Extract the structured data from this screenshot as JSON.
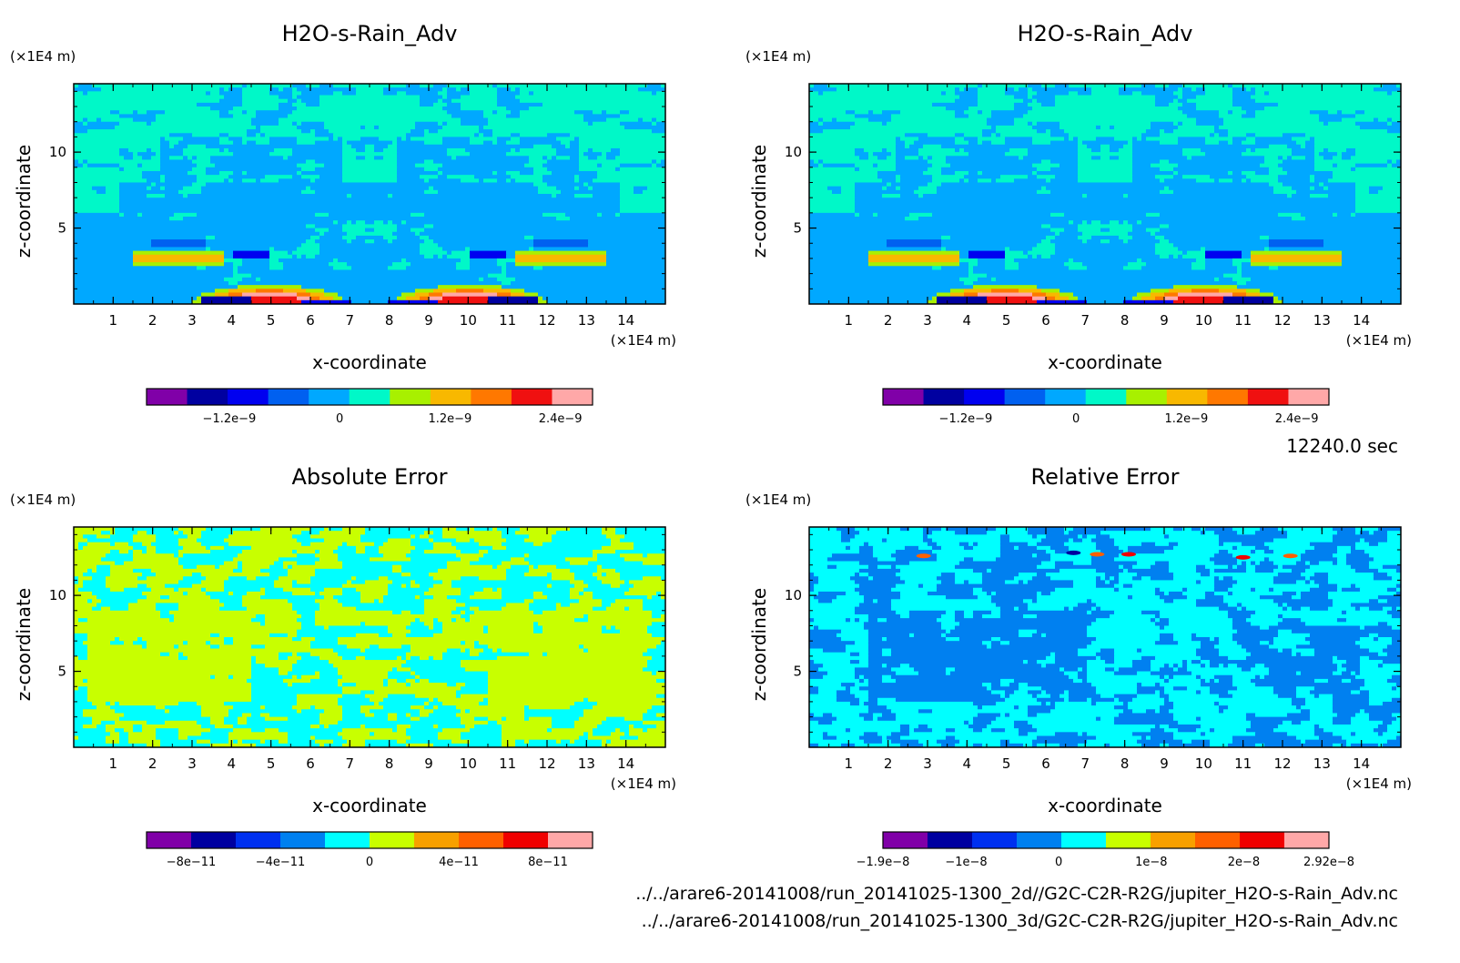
{
  "figure": {
    "time_label": "12240.0 sec",
    "file_lines": [
      "../../arare6-20141008/run_20141025-1300_2d//G2C-C2R-R2G/jupiter_H2O-s-Rain_Adv.nc",
      "../../arare6-20141008/run_20141025-1300_3d/G2C-C2R-R2G/jupiter_H2O-s-Rain_Adv.nc"
    ],
    "colors": {
      "palette": [
        "#8000a8",
        "#0000a0",
        "#0000f0",
        "#0060f0",
        "#00a8ff",
        "#00f8c8",
        "#a8f000",
        "#f8b800",
        "#ff7800",
        "#f01010",
        "#ffa8a8"
      ],
      "error_palette": [
        "#8000a8",
        "#0000a0",
        "#0030f0",
        "#0080f0",
        "#00ffff",
        "#c8ff00",
        "#f8a000",
        "#ff6000",
        "#f00000",
        "#ffa8a8"
      ]
    }
  },
  "chart_data": [
    {
      "type": "heatmap",
      "title": "H2O-s-Rain_Adv",
      "xlabel": "x-coordinate",
      "ylabel": "z-coordinate",
      "x_unit": "(×1E4 m)",
      "y_unit": "(×1E4 m)",
      "xlim": [
        0,
        15
      ],
      "ylim": [
        0,
        14.5
      ],
      "x_ticks": [
        1,
        2,
        3,
        4,
        5,
        6,
        7,
        8,
        9,
        10,
        11,
        12,
        13,
        14
      ],
      "y_ticks": [
        5,
        10
      ],
      "colorbar_ticks": [
        {
          "value": -1.2e-09,
          "label": "−1.2e−9"
        },
        {
          "value": 0,
          "label": "0"
        },
        {
          "value": 1.2e-09,
          "label": "1.2e−9"
        },
        {
          "value": 2.4e-09,
          "label": "2.4e−9"
        }
      ],
      "colorbar_range": [
        -2.1e-09,
        2.75e-09
      ]
    },
    {
      "type": "heatmap",
      "title": "H2O-s-Rain_Adv",
      "xlabel": "x-coordinate",
      "ylabel": "z-coordinate",
      "x_unit": "(×1E4 m)",
      "y_unit": "(×1E4 m)",
      "xlim": [
        0,
        15
      ],
      "ylim": [
        0,
        14.5
      ],
      "x_ticks": [
        1,
        2,
        3,
        4,
        5,
        6,
        7,
        8,
        9,
        10,
        11,
        12,
        13,
        14
      ],
      "y_ticks": [
        5,
        10
      ],
      "colorbar_ticks": [
        {
          "value": -1.2e-09,
          "label": "−1.2e−9"
        },
        {
          "value": 0,
          "label": "0"
        },
        {
          "value": 1.2e-09,
          "label": "1.2e−9"
        },
        {
          "value": 2.4e-09,
          "label": "2.4e−9"
        }
      ],
      "colorbar_range": [
        -2.1e-09,
        2.75e-09
      ]
    },
    {
      "type": "heatmap",
      "title": "Absolute Error",
      "xlabel": "x-coordinate",
      "ylabel": "z-coordinate",
      "x_unit": "(×1E4 m)",
      "y_unit": "(×1E4 m)",
      "xlim": [
        0,
        15
      ],
      "ylim": [
        0,
        14.5
      ],
      "x_ticks": [
        1,
        2,
        3,
        4,
        5,
        6,
        7,
        8,
        9,
        10,
        11,
        12,
        13,
        14
      ],
      "y_ticks": [
        5,
        10
      ],
      "colorbar_ticks": [
        {
          "value": -8e-11,
          "label": "−8e−11"
        },
        {
          "value": -4e-11,
          "label": "−4e−11"
        },
        {
          "value": 0,
          "label": "0"
        },
        {
          "value": 4e-11,
          "label": "4e−11"
        },
        {
          "value": 8e-11,
          "label": "8e−11"
        }
      ],
      "colorbar_range": [
        -1e-10,
        1e-10
      ]
    },
    {
      "type": "heatmap",
      "title": "Relative Error",
      "xlabel": "x-coordinate",
      "ylabel": "z-coordinate",
      "x_unit": "(×1E4 m)",
      "y_unit": "(×1E4 m)",
      "xlim": [
        0,
        15
      ],
      "ylim": [
        0,
        14.5
      ],
      "x_ticks": [
        1,
        2,
        3,
        4,
        5,
        6,
        7,
        8,
        9,
        10,
        11,
        12,
        13,
        14
      ],
      "y_ticks": [
        5,
        10
      ],
      "colorbar_ticks": [
        {
          "value": -1.9e-08,
          "label": "−1.9e−8"
        },
        {
          "value": -1e-08,
          "label": "−1e−8"
        },
        {
          "value": 0,
          "label": "0"
        },
        {
          "value": 1e-08,
          "label": "1e−8"
        },
        {
          "value": 2e-08,
          "label": "2e−8"
        },
        {
          "value": 2.92e-08,
          "label": "2.92e−8"
        }
      ],
      "colorbar_range": [
        -1.9e-08,
        2.92e-08
      ]
    }
  ]
}
